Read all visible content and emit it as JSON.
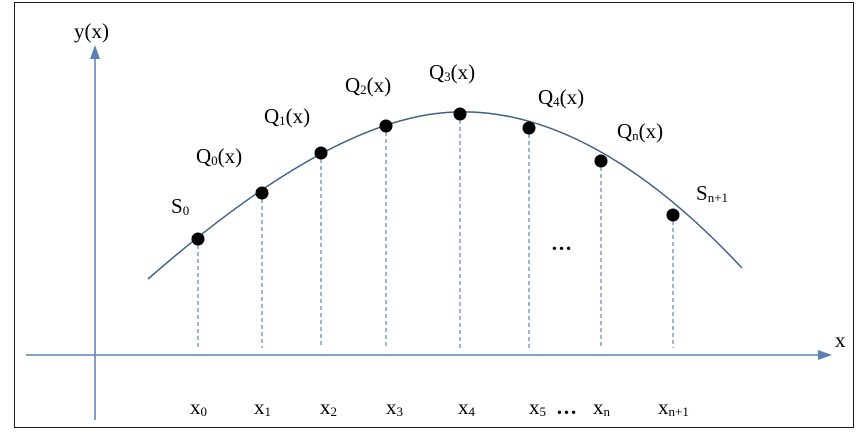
{
  "colors": {
    "axis": "#5b7fb1",
    "curve": "#3d5f88",
    "guide": "#3d6ea8",
    "point": "#000000",
    "frame": "#1a1a1a"
  },
  "axes": {
    "x_label": "x",
    "y_label": "y(x)"
  },
  "points": [
    {
      "name": "S",
      "sub": "0",
      "suffix": ""
    },
    {
      "name": "Q",
      "sub": "0",
      "suffix": "(x)"
    },
    {
      "name": "Q",
      "sub": "1",
      "suffix": "(x)"
    },
    {
      "name": "Q",
      "sub": "2",
      "suffix": "(x)"
    },
    {
      "name": "Q",
      "sub": "3",
      "suffix": "(x)"
    },
    {
      "name": "Q",
      "sub": "4",
      "suffix": "(x)"
    },
    {
      "name": "Q",
      "sub": "n",
      "suffix": "(x)"
    },
    {
      "name": "S",
      "sub": "n+1",
      "suffix": ""
    }
  ],
  "x_ticks": [
    {
      "name": "x",
      "sub": "0"
    },
    {
      "name": "x",
      "sub": "1"
    },
    {
      "name": "x",
      "sub": "2"
    },
    {
      "name": "x",
      "sub": "3"
    },
    {
      "name": "x",
      "sub": "4"
    },
    {
      "name": "x",
      "sub": "5"
    },
    {
      "name": "x",
      "sub": "n"
    },
    {
      "name": "x",
      "sub": "n+1"
    }
  ],
  "ellipsis_curve": "…",
  "ellipsis_axis": "…"
}
